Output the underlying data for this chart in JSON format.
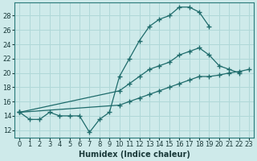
{
  "xlabel": "Humidex (Indice chaleur)",
  "bg_color": "#ceeaea",
  "grid_color": "#b0d8d8",
  "line_color": "#1e6b6b",
  "xlim": [
    -0.5,
    23.5
  ],
  "ylim": [
    11.0,
    29.8
  ],
  "xticks": [
    0,
    1,
    2,
    3,
    4,
    5,
    6,
    7,
    8,
    9,
    10,
    11,
    12,
    13,
    14,
    15,
    16,
    17,
    18,
    19,
    20,
    21,
    22,
    23
  ],
  "yticks": [
    12,
    14,
    16,
    18,
    20,
    22,
    24,
    26,
    28
  ],
  "series1_x": [
    0,
    1,
    2,
    3,
    4,
    5,
    6,
    7,
    8,
    9,
    10,
    11,
    12,
    13,
    14,
    15,
    16,
    17,
    18,
    19
  ],
  "series1_y": [
    14.5,
    13.5,
    13.5,
    14.5,
    14.0,
    14.0,
    14.0,
    11.7,
    13.5,
    14.5,
    19.5,
    22.0,
    24.5,
    26.5,
    27.5,
    28.0,
    29.2,
    29.2,
    28.5,
    26.5
  ],
  "series2_x": [
    0,
    10,
    11,
    12,
    13,
    14,
    15,
    16,
    17,
    18,
    19,
    20,
    21,
    22,
    23
  ],
  "series2_y": [
    14.5,
    17.5,
    18.5,
    19.5,
    20.5,
    21.0,
    21.5,
    22.5,
    23.0,
    23.5,
    22.5,
    21.0,
    20.5,
    20.0,
    null
  ],
  "series3_x": [
    0,
    10,
    11,
    12,
    13,
    14,
    15,
    16,
    17,
    18,
    19,
    20,
    21,
    22,
    23
  ],
  "series3_y": [
    14.5,
    15.5,
    16.0,
    16.5,
    17.0,
    17.5,
    18.0,
    18.5,
    19.0,
    19.5,
    19.5,
    19.7,
    20.0,
    20.2,
    20.5
  ]
}
